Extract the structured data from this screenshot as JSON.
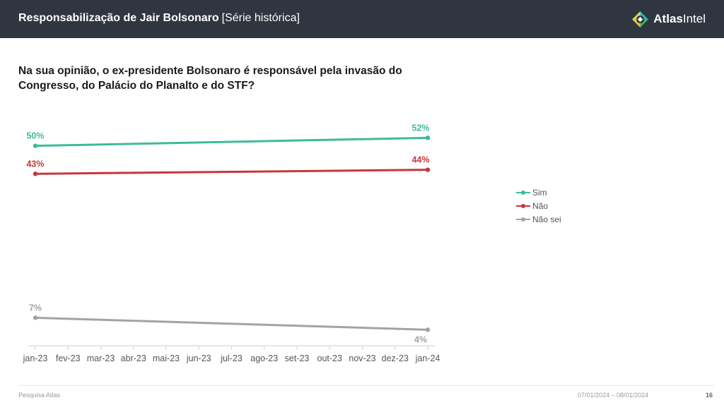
{
  "header": {
    "title_bold": "Responsabilização de Jair Bolsonaro",
    "title_sub": "[Série histórica]",
    "brand_bold": "Atlas",
    "brand_regular": "Intel",
    "bg_color": "#2f3640"
  },
  "question": "Na sua opinião, o ex-presidente Bolsonaro é responsável pela invasão do Congresso, do Palácio do Planalto e do STF?",
  "chart_data": {
    "type": "line",
    "title": "Na sua opinião, o ex-presidente Bolsonaro é responsável pela invasão do Congresso, do Palácio do Planalto e do STF?",
    "categories": [
      "jan-23",
      "fev-23",
      "mar-23",
      "abr-23",
      "mai-23",
      "jun-23",
      "jul-23",
      "ago-23",
      "set-23",
      "out-23",
      "nov-23",
      "dez-23",
      "jan-24"
    ],
    "x": [
      "jan-23",
      "jan-24"
    ],
    "series": [
      {
        "name": "Sim",
        "values": [
          50,
          52
        ],
        "labels": [
          "50%",
          "52%"
        ],
        "color": "#3dbb9a"
      },
      {
        "name": "Não",
        "values": [
          43,
          44
        ],
        "labels": [
          "43%",
          "44%"
        ],
        "color": "#c9363a"
      },
      {
        "name": "Não sei",
        "values": [
          7,
          4
        ],
        "labels": [
          "7%",
          "4%"
        ],
        "color": "#a3a3a3"
      }
    ],
    "legend_position": "right",
    "grid": false,
    "ylim": [
      0,
      60
    ]
  },
  "footer": {
    "source": "Pesquisa Atlas",
    "date_range": "07/01/2024 – 08/01/2024",
    "page": "16"
  }
}
